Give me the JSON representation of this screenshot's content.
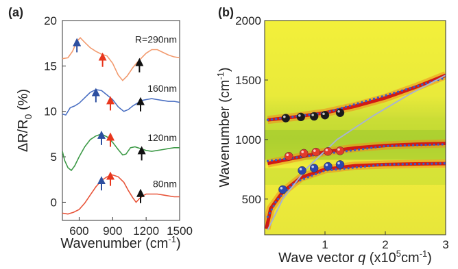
{
  "colors": {
    "orange": "#f29a6e",
    "blue": "#4a6fc2",
    "green": "#3e9a48",
    "red": "#e8553a",
    "arrow_blue": "#2d4fa0",
    "arrow_red": "#e8361d",
    "arrow_black": "#111111",
    "map_yellow": "#f2ee3a",
    "map_green": "#a9cf2f",
    "map_red": "#d11a14",
    "dot_line": "#3a5cc6",
    "fit_curve": "#a8b4d0"
  },
  "chart_data": [
    {
      "panel_label": "(a)",
      "type": "line",
      "xlabel": "Wavenumber (cm",
      "xlabel_sup": "-1",
      "xlabel_tail": ")",
      "ylabel_main": "ΔR/R",
      "ylabel_sub": "0",
      "ylabel_tail": " (%)",
      "xlim": [
        450,
        1500
      ],
      "ylim": [
        -2,
        20
      ],
      "xticks": [
        600,
        900,
        1200,
        1500
      ],
      "yticks": [
        0,
        5,
        10,
        15,
        20
      ],
      "series": [
        {
          "name": "R=290nm",
          "color": "orange",
          "points": [
            [
              450,
              15.8
            ],
            [
              500,
              15.9
            ],
            [
              540,
              16.6
            ],
            [
              580,
              17.7
            ],
            [
              610,
              18.1
            ],
            [
              650,
              17.6
            ],
            [
              700,
              17.0
            ],
            [
              750,
              16.6
            ],
            [
              800,
              16.3
            ],
            [
              850,
              16.1
            ],
            [
              900,
              15.3
            ],
            [
              950,
              14.0
            ],
            [
              990,
              13.4
            ],
            [
              1030,
              13.9
            ],
            [
              1080,
              14.8
            ],
            [
              1120,
              15.4
            ],
            [
              1160,
              15.9
            ],
            [
              1200,
              16.4
            ],
            [
              1250,
              16.8
            ],
            [
              1300,
              16.8
            ],
            [
              1350,
              16.5
            ],
            [
              1400,
              16.2
            ],
            [
              1450,
              16.0
            ],
            [
              1500,
              15.9
            ]
          ],
          "arrows": [
            {
              "x": 580,
              "y": 16.5,
              "color": "arrow_blue"
            },
            {
              "x": 810,
              "y": 14.9,
              "color": "arrow_red"
            },
            {
              "x": 1140,
              "y": 14.3,
              "color": "arrow_black"
            }
          ]
        },
        {
          "name": "160nm",
          "color": "blue",
          "points": [
            [
              450,
              9.7
            ],
            [
              480,
              9.6
            ],
            [
              520,
              10.4
            ],
            [
              560,
              10.6
            ],
            [
              600,
              10.9
            ],
            [
              650,
              11.5
            ],
            [
              700,
              12.1
            ],
            [
              750,
              12.4
            ],
            [
              800,
              12.3
            ],
            [
              850,
              11.8
            ],
            [
              900,
              11.3
            ],
            [
              950,
              10.5
            ],
            [
              1000,
              10.0
            ],
            [
              1040,
              10.2
            ],
            [
              1080,
              10.6
            ],
            [
              1120,
              10.9
            ],
            [
              1160,
              11.2
            ],
            [
              1200,
              11.3
            ],
            [
              1250,
              11.4
            ],
            [
              1300,
              11.3
            ],
            [
              1350,
              11.2
            ],
            [
              1400,
              11.1
            ],
            [
              1450,
              11.1
            ],
            [
              1500,
              11.0
            ]
          ],
          "arrows": [
            {
              "x": 750,
              "y": 11.0,
              "color": "arrow_blue"
            },
            {
              "x": 880,
              "y": 10.1,
              "color": "arrow_red"
            },
            {
              "x": 1150,
              "y": 10.0,
              "color": "arrow_black"
            }
          ]
        },
        {
          "name": "120nm",
          "color": "green",
          "points": [
            [
              450,
              5.6
            ],
            [
              470,
              4.6
            ],
            [
              500,
              3.8
            ],
            [
              530,
              3.5
            ],
            [
              560,
              4.0
            ],
            [
              600,
              5.0
            ],
            [
              650,
              6.1
            ],
            [
              700,
              6.9
            ],
            [
              750,
              7.3
            ],
            [
              800,
              7.5
            ],
            [
              850,
              7.2
            ],
            [
              900,
              6.6
            ],
            [
              950,
              5.8
            ],
            [
              990,
              5.2
            ],
            [
              1020,
              5.3
            ],
            [
              1060,
              6.0
            ],
            [
              1100,
              6.1
            ],
            [
              1150,
              5.9
            ],
            [
              1200,
              5.7
            ],
            [
              1250,
              5.6
            ],
            [
              1300,
              5.7
            ],
            [
              1350,
              5.8
            ],
            [
              1400,
              5.9
            ],
            [
              1450,
              6.0
            ],
            [
              1500,
              6.0
            ]
          ],
          "arrows": [
            {
              "x": 800,
              "y": 6.3,
              "color": "arrow_blue"
            },
            {
              "x": 880,
              "y": 6.1,
              "color": "arrow_red"
            },
            {
              "x": 1160,
              "y": 4.6,
              "color": "arrow_black"
            }
          ]
        },
        {
          "name": "80nm",
          "color": "red",
          "points": [
            [
              450,
              -1.2
            ],
            [
              500,
              -1.3
            ],
            [
              550,
              -1.1
            ],
            [
              600,
              -0.8
            ],
            [
              650,
              -0.1
            ],
            [
              700,
              0.8
            ],
            [
              750,
              1.7
            ],
            [
              800,
              2.4
            ],
            [
              850,
              2.8
            ],
            [
              900,
              3.0
            ],
            [
              950,
              2.8
            ],
            [
              1000,
              2.2
            ],
            [
              1040,
              1.3
            ],
            [
              1080,
              0.5
            ],
            [
              1110,
              0.0
            ],
            [
              1140,
              0.4
            ],
            [
              1170,
              0.7
            ],
            [
              1200,
              0.9
            ],
            [
              1250,
              0.9
            ],
            [
              1300,
              0.9
            ],
            [
              1350,
              0.8
            ],
            [
              1400,
              0.7
            ],
            [
              1450,
              0.6
            ],
            [
              1500,
              0.6
            ]
          ],
          "arrows": [
            {
              "x": 800,
              "y": 1.3,
              "color": "arrow_blue"
            },
            {
              "x": 880,
              "y": 1.8,
              "color": "arrow_red"
            },
            {
              "x": 1150,
              "y": -0.1,
              "color": "arrow_black"
            }
          ]
        }
      ]
    },
    {
      "panel_label": "(b)",
      "type": "heatmap",
      "xlabel_pre": "Wave vector ",
      "xlabel_q": "q",
      "xlabel_mid": " (x10",
      "xlabel_sup": "5",
      "xlabel_mid2": "cm",
      "xlabel_sup2": "-1",
      "xlabel_tail": ")",
      "ylabel_main": "Wavenumber (cm",
      "ylabel_sup": "-1",
      "ylabel_tail": ")",
      "xlim": [
        0,
        3
      ],
      "ylim": [
        200,
        2000
      ],
      "xticks": [
        1,
        2,
        3
      ],
      "yticks": [
        500,
        1000,
        1500,
        2000
      ],
      "branches": [
        {
          "name": "upper",
          "points": [
            [
              0.05,
              1165
            ],
            [
              0.5,
              1190
            ],
            [
              1.0,
              1225
            ],
            [
              1.5,
              1280
            ],
            [
              2.0,
              1350
            ],
            [
              2.5,
              1440
            ],
            [
              3.0,
              1540
            ]
          ]
        },
        {
          "name": "middle",
          "points": [
            [
              0.05,
              800
            ],
            [
              0.5,
              845
            ],
            [
              1.0,
              895
            ],
            [
              1.5,
              930
            ],
            [
              2.0,
              950
            ],
            [
              2.5,
              960
            ],
            [
              3.0,
              968
            ]
          ]
        },
        {
          "name": "lower",
          "points": [
            [
              0.03,
              250
            ],
            [
              0.1,
              420
            ],
            [
              0.3,
              560
            ],
            [
              0.6,
              680
            ],
            [
              1.0,
              750
            ],
            [
              1.5,
              780
            ],
            [
              2.0,
              790
            ],
            [
              2.5,
              795
            ],
            [
              3.0,
              798
            ]
          ]
        }
      ],
      "dotted_lines": [
        {
          "points": [
            [
              0.05,
              1165
            ],
            [
              1.0,
              1225
            ],
            [
              2.0,
              1370
            ],
            [
              3.0,
              1520
            ]
          ]
        },
        {
          "points": [
            [
              0.05,
              820
            ],
            [
              1.0,
              880
            ],
            [
              2.0,
              945
            ],
            [
              3.0,
              960
            ]
          ]
        },
        {
          "points": [
            [
              0.05,
              350
            ],
            [
              0.2,
              490
            ],
            [
              0.5,
              640
            ],
            [
              1.0,
              740
            ],
            [
              2.0,
              790
            ],
            [
              3.0,
              800
            ]
          ]
        }
      ],
      "fit_curve": [
        [
          0.05,
          240
        ],
        [
          0.3,
          500
        ],
        [
          0.7,
          760
        ],
        [
          1.2,
          1000
        ],
        [
          1.8,
          1200
        ],
        [
          2.4,
          1380
        ],
        [
          3.0,
          1540
        ]
      ],
      "markers": {
        "black": [
          [
            0.35,
            1180
          ],
          [
            0.6,
            1190
          ],
          [
            0.82,
            1195
          ],
          [
            1.0,
            1205
          ],
          [
            1.25,
            1225
          ]
        ],
        "red": [
          [
            0.4,
            860
          ],
          [
            0.65,
            885
          ],
          [
            0.85,
            895
          ],
          [
            1.05,
            900
          ],
          [
            1.25,
            905
          ]
        ],
        "blue": [
          [
            0.3,
            580
          ],
          [
            0.62,
            740
          ],
          [
            0.82,
            760
          ],
          [
            1.05,
            775
          ],
          [
            1.25,
            790
          ]
        ]
      }
    }
  ]
}
